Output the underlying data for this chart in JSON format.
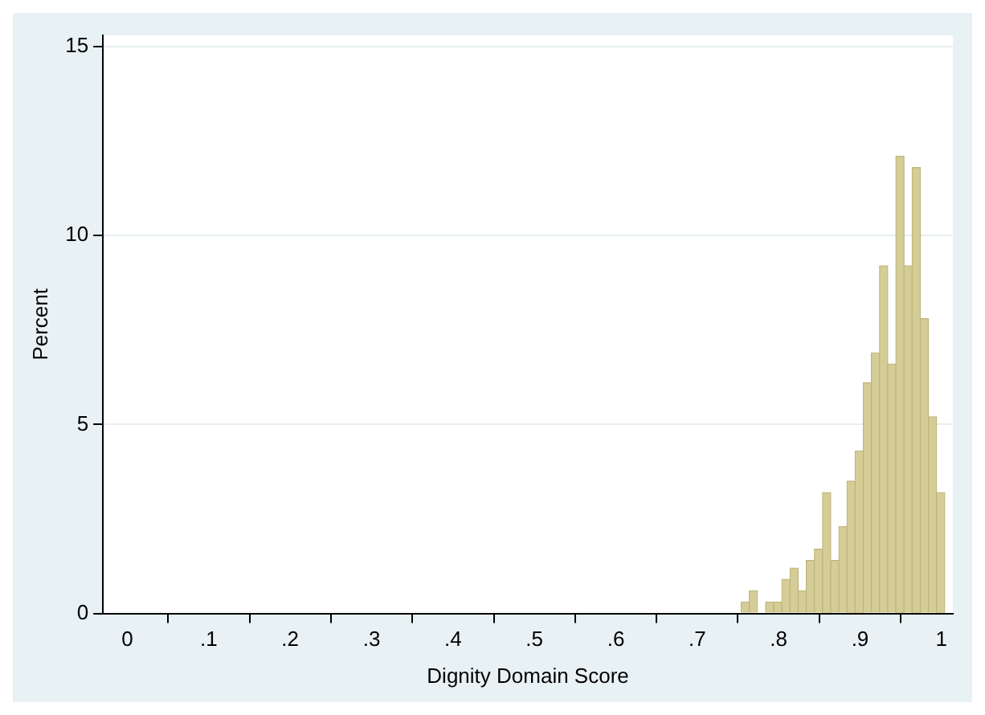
{
  "chart_data": {
    "type": "histogram",
    "xlabel": "Dignity Domain Score",
    "ylabel": "Percent",
    "bins": [
      0.754,
      0.764,
      0.774,
      0.784,
      0.794,
      0.804,
      0.814,
      0.824,
      0.834,
      0.844,
      0.854,
      0.864,
      0.874,
      0.884,
      0.894,
      0.904,
      0.914,
      0.924,
      0.934,
      0.944,
      0.954,
      0.964,
      0.974,
      0.984,
      0.994,
      1.004
    ],
    "values": [
      0.3,
      0.6,
      0,
      0.3,
      0.3,
      0.9,
      1.2,
      0.6,
      1.4,
      1.7,
      3.2,
      1.4,
      2.3,
      3.5,
      4.3,
      6.1,
      6.9,
      9.2,
      6.6,
      12.1,
      9.2,
      11.8,
      7.8,
      5.2,
      3.2
    ],
    "color": "#d5cd97",
    "xlim": [
      -0.03,
      1.014
    ],
    "xticks": [
      0,
      {
        "value": 0.1,
        "label": ".1"
      },
      {
        "value": 0.2,
        "label": ".2"
      },
      {
        "value": 0.3,
        "label": ".3"
      },
      {
        "value": 0.4,
        "label": ".4"
      },
      {
        "value": 0.5,
        "label": ".5"
      },
      {
        "value": 0.6,
        "label": ".6"
      },
      {
        "value": 0.7,
        "label": ".7"
      },
      {
        "value": 0.8,
        "label": ".8"
      },
      {
        "value": 0.9,
        "label": ".9"
      },
      1
    ],
    "ylim": [
      0,
      15.3
    ],
    "yticks": [
      0,
      5,
      10,
      15
    ],
    "grid": "y",
    "legend": false
  }
}
